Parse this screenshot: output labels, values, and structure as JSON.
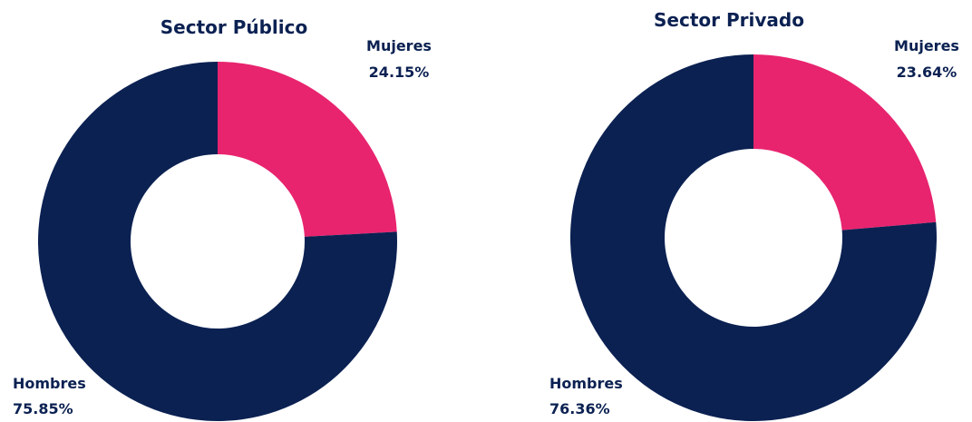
{
  "chart_data": [
    {
      "type": "pie",
      "title": "Sector Público",
      "categories": [
        "Mujeres",
        "Hombres"
      ],
      "values": [
        24.15,
        75.85
      ],
      "value_labels": [
        "24.15%",
        "75.85%"
      ],
      "colors": [
        "#e8246f",
        "#0b2152"
      ],
      "donut": true
    },
    {
      "type": "pie",
      "title": "Sector Privado",
      "categories": [
        "Mujeres",
        "Hombres"
      ],
      "values": [
        23.64,
        76.36
      ],
      "value_labels": [
        "23.64%",
        "76.36%"
      ],
      "colors": [
        "#e8246f",
        "#0b2152"
      ],
      "donut": true
    }
  ]
}
